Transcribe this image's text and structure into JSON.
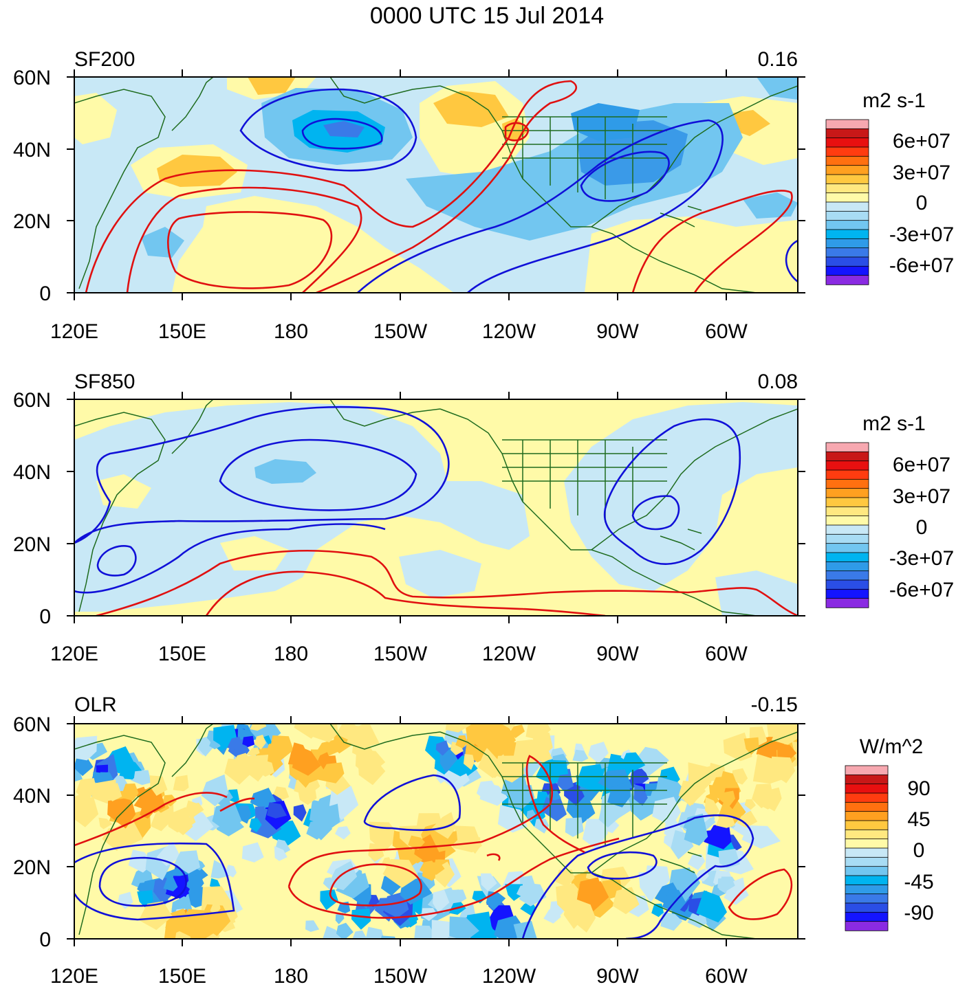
{
  "title": "0000 UTC 15 Jul 2014",
  "colors": {
    "land_outline": "#1e6b1e",
    "positive_contour": "#e01010",
    "negative_contour": "#1010d8",
    "frame": "#000000"
  },
  "x_tick_labels": [
    "120E",
    "150E",
    "180",
    "150W",
    "120W",
    "90W",
    "60W"
  ],
  "y_tick_labels": [
    "0",
    "20N",
    "40N",
    "60N"
  ],
  "palette": [
    "#8a2be2",
    "#1414ff",
    "#2a4ee6",
    "#3a7ae8",
    "#2f9be8",
    "#00b4f0",
    "#72c6f0",
    "#a8dcf4",
    "#c8e8f6",
    "#fffaa8",
    "#ffe880",
    "#ffc840",
    "#ffa020",
    "#ff7010",
    "#ff3c10",
    "#e81010",
    "#c81818",
    "#f7a8b0"
  ],
  "panels": [
    {
      "id": "sf200",
      "label": "SF200",
      "correlation": "0.16",
      "units": "m2 s-1",
      "colorbar_labels": [
        "6e+07",
        "3e+07",
        "0",
        "-3e+07",
        "-6e+07"
      ]
    },
    {
      "id": "sf850",
      "label": "SF850",
      "correlation": "0.08",
      "units": "m2 s-1",
      "colorbar_labels": [
        "6e+07",
        "3e+07",
        "0",
        "-3e+07",
        "-6e+07"
      ]
    },
    {
      "id": "olr",
      "label": "OLR",
      "correlation": "-0.15",
      "units": "W/m^2",
      "colorbar_labels": [
        "90",
        "45",
        "0",
        "-45",
        "-90"
      ]
    }
  ]
}
